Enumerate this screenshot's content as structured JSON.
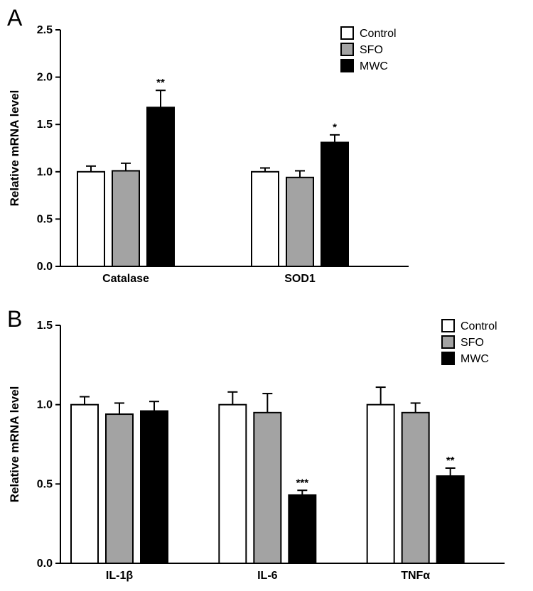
{
  "figure": {
    "background": "#ffffff",
    "bar_outline_color": "#000000"
  },
  "chart_data": [
    {
      "type": "bar",
      "panel": "A",
      "title": "",
      "xlabel": "",
      "ylabel": "Relative mRNA level",
      "ylim": [
        0,
        2.5
      ],
      "yticks": [
        "0.0",
        "0.5",
        "1.0",
        "1.5",
        "2.0",
        "2.5"
      ],
      "categories": [
        "Catalase",
        "SOD1"
      ],
      "grid": false,
      "legend_position": "top-right",
      "series": [
        {
          "name": "Control",
          "color": "#ffffff",
          "values": [
            1.0,
            1.0
          ],
          "errors": [
            0.06,
            0.04
          ],
          "annotations": [
            "",
            ""
          ]
        },
        {
          "name": "SFO",
          "color": "#a3a3a3",
          "values": [
            1.01,
            0.94
          ],
          "errors": [
            0.08,
            0.07
          ],
          "annotations": [
            "",
            ""
          ]
        },
        {
          "name": "MWC",
          "color": "#000000",
          "values": [
            1.68,
            1.31
          ],
          "errors": [
            0.18,
            0.08
          ],
          "annotations": [
            "**",
            "*"
          ]
        }
      ]
    },
    {
      "type": "bar",
      "panel": "B",
      "title": "",
      "xlabel": "",
      "ylabel": "Relative mRNA level",
      "ylim": [
        0,
        1.5
      ],
      "yticks": [
        "0.0",
        "0.5",
        "1.0",
        "1.5"
      ],
      "categories": [
        "IL-1β",
        "IL-6",
        "TNFα"
      ],
      "grid": false,
      "legend_position": "top-right",
      "series": [
        {
          "name": "Control",
          "color": "#ffffff",
          "values": [
            1.0,
            1.0,
            1.0
          ],
          "errors": [
            0.05,
            0.08,
            0.11
          ],
          "annotations": [
            "",
            "",
            ""
          ]
        },
        {
          "name": "SFO",
          "color": "#a3a3a3",
          "values": [
            0.94,
            0.95,
            0.95
          ],
          "errors": [
            0.07,
            0.12,
            0.06
          ],
          "annotations": [
            "",
            "",
            ""
          ]
        },
        {
          "name": "MWC",
          "color": "#000000",
          "values": [
            0.96,
            0.43,
            0.55
          ],
          "errors": [
            0.06,
            0.03,
            0.05
          ],
          "annotations": [
            "",
            "***",
            "**"
          ]
        }
      ]
    }
  ]
}
